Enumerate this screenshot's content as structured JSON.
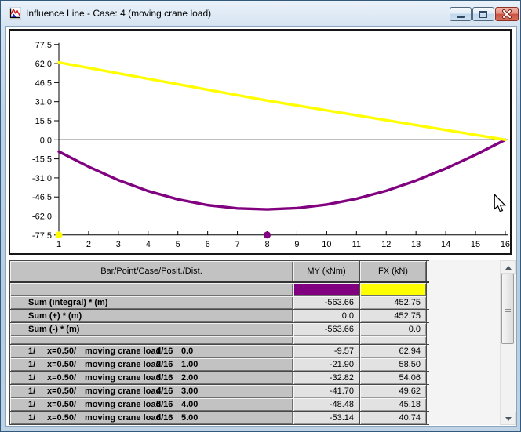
{
  "window": {
    "title": "Influence Line - Case: 4 (moving crane load)"
  },
  "chart_data": {
    "type": "line",
    "title": "Influence Line - Case: 4 (moving crane load)",
    "xlabel": "",
    "ylabel": "",
    "xlim": [
      1,
      16
    ],
    "ylim": [
      -77.5,
      77.5
    ],
    "grid": false,
    "legend_position": "none",
    "x": [
      1,
      2,
      3,
      4,
      5,
      6,
      7,
      8,
      9,
      10,
      11,
      12,
      13,
      14,
      15,
      16
    ],
    "x_tick_labels": [
      "1",
      "2",
      "3",
      "4",
      "5",
      "6",
      "7",
      "8",
      "9",
      "10",
      "11",
      "12",
      "13",
      "14",
      "15",
      "16"
    ],
    "y_tick_labels": [
      "77.5",
      "62.0",
      "46.5",
      "31.0",
      "15.5",
      "0.0",
      "-15.5",
      "-31.0",
      "-46.5",
      "-62.0",
      "-77.5"
    ],
    "series": [
      {
        "name": "MY (kNm)",
        "color": "#800080",
        "values": [
          -9.57,
          -21.9,
          -32.82,
          -41.7,
          -48.48,
          -53.14,
          -55.8,
          -56.6,
          -55.6,
          -52.7,
          -48.0,
          -41.5,
          -33.2,
          -23.4,
          -12.2,
          0.0
        ]
      },
      {
        "name": "FX (kN)",
        "color": "#ffff00",
        "values": [
          62.94,
          58.5,
          54.06,
          49.62,
          45.18,
          40.74,
          36.3,
          31.86,
          27.87,
          23.89,
          19.91,
          15.93,
          11.95,
          7.96,
          3.98,
          0.0
        ]
      }
    ],
    "baseline_markers": [
      {
        "x": 1,
        "color": "#ffff00"
      },
      {
        "x": 8,
        "color": "#800080"
      }
    ]
  },
  "table": {
    "columns": [
      "Bar/Point/Case/Posit./Dist.",
      "MY (kNm)",
      "FX (kN)"
    ],
    "legend_row": {
      "my_color": "#800080",
      "fx_color": "#ffff00"
    },
    "sum_rows": [
      {
        "label": "Sum (integral) * (m)",
        "my": "-563.66",
        "fx": "452.75"
      },
      {
        "label": "Sum (+) * (m)",
        "my": "0.0",
        "fx": "452.75"
      },
      {
        "label": "Sum (-) * (m)",
        "my": "-563.66",
        "fx": "0.0"
      }
    ],
    "data_rows": [
      {
        "bar": "1/",
        "x": "x=0.50/",
        "case": "moving crane load/",
        "posit": "1/16",
        "dist": "0.0",
        "my": "-9.57",
        "fx": "62.94"
      },
      {
        "bar": "1/",
        "x": "x=0.50/",
        "case": "moving crane load/",
        "posit": "2/16",
        "dist": "1.00",
        "my": "-21.90",
        "fx": "58.50"
      },
      {
        "bar": "1/",
        "x": "x=0.50/",
        "case": "moving crane load/",
        "posit": "3/16",
        "dist": "2.00",
        "my": "-32.82",
        "fx": "54.06"
      },
      {
        "bar": "1/",
        "x": "x=0.50/",
        "case": "moving crane load/",
        "posit": "4/16",
        "dist": "3.00",
        "my": "-41.70",
        "fx": "49.62"
      },
      {
        "bar": "1/",
        "x": "x=0.50/",
        "case": "moving crane load/",
        "posit": "5/16",
        "dist": "4.00",
        "my": "-48.48",
        "fx": "45.18"
      },
      {
        "bar": "1/",
        "x": "x=0.50/",
        "case": "moving crane load/",
        "posit": "6/16",
        "dist": "5.00",
        "my": "-53.14",
        "fx": "40.74"
      }
    ]
  }
}
